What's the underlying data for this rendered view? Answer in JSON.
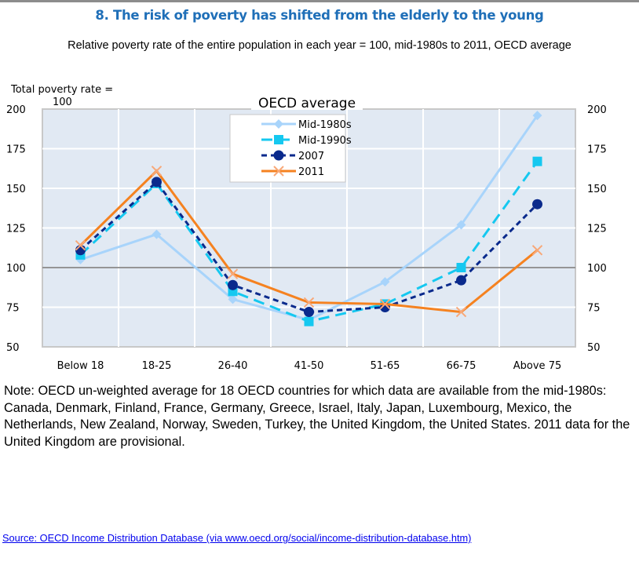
{
  "header": {
    "title": "8. The risk of poverty has shifted from the elderly to the young",
    "subtitle": "Relative poverty rate of the entire population in each year = 100, mid-1980s to 2011, OECD average"
  },
  "chart_data": {
    "type": "line",
    "title": "OECD average",
    "ylabel_line1": "Total poverty rate =",
    "ylabel_line2": "100",
    "xlabel": "",
    "categories": [
      "Below 18",
      "18-25",
      "26-40",
      "41-50",
      "51-65",
      "66-75",
      "Above 75"
    ],
    "ylim": [
      50,
      200
    ],
    "yticks": [
      50,
      75,
      100,
      125,
      150,
      175,
      200
    ],
    "ytick_labels": [
      "50",
      "75",
      "100",
      "125",
      "150",
      "175",
      "200"
    ],
    "reference_line": 100,
    "grid": true,
    "legend_position": "top-center",
    "series": [
      {
        "name": "Mid-1980s",
        "color": "#a8d4fb",
        "marker": "diamond",
        "dash": "solid",
        "values": [
          105,
          121,
          80,
          67,
          91,
          127,
          196
        ]
      },
      {
        "name": "Mid-1990s",
        "color": "#15c8f0",
        "marker": "square",
        "dash": "long-dash",
        "values": [
          108,
          153,
          85,
          66,
          77,
          100,
          167
        ]
      },
      {
        "name": "2007",
        "color": "#0a2a8c",
        "marker": "circle",
        "dash": "short-dash",
        "values": [
          111,
          154,
          89,
          72,
          75,
          92,
          140
        ]
      },
      {
        "name": "2011",
        "color": "#f58220",
        "marker": "x",
        "dash": "solid",
        "values": [
          114,
          161,
          96,
          78,
          77,
          72,
          111
        ]
      }
    ]
  },
  "footer": {
    "note": "Note: OECD un-weighted average for 18 OECD countries for which data are available from the mid-1980s: Canada, Denmark, Finland, France, Germany, Greece, Israel, Italy, Japan, Luxembourg, Mexico, the Netherlands, New Zealand, Norway, Sweden, Turkey, the United Kingdom, the United States. 2011 data for the United Kingdom are provisional.",
    "source": "Source: OECD Income Distribution Database (via www.oecd.org/social/income-distribution-database.htm)"
  }
}
